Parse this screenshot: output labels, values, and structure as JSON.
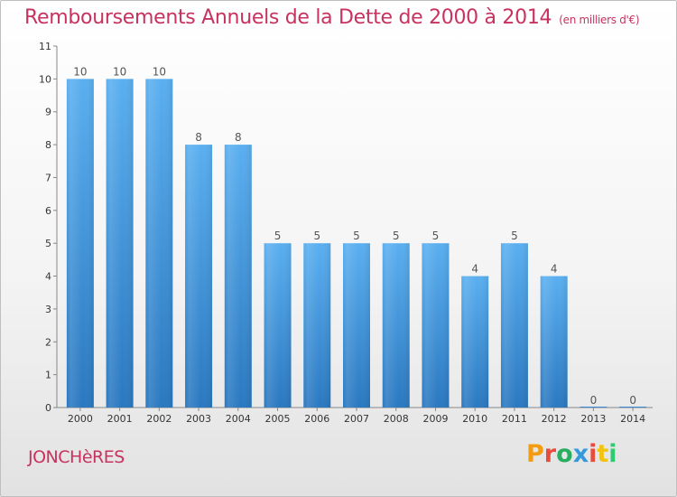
{
  "header": {
    "title": "Remboursements Annuels de la Dette de 2000 à 2014",
    "unit": "(en milliers d'€)"
  },
  "footer": {
    "town": "JONCHèRES",
    "brand": "Proxiti",
    "brand_colors": [
      "#f39c12",
      "#e74c3c",
      "#27ae60",
      "#3498db",
      "#e74c3c",
      "#f1c40f",
      "#2ecc71"
    ]
  },
  "chart_data": {
    "type": "bar",
    "title": "Remboursements Annuels de la Dette de 2000 à 2014",
    "subtitle": "(en milliers d'€)",
    "xlabel": "",
    "ylabel": "",
    "categories": [
      "2000",
      "2001",
      "2002",
      "2003",
      "2004",
      "2005",
      "2006",
      "2007",
      "2008",
      "2009",
      "2010",
      "2011",
      "2012",
      "2013",
      "2014"
    ],
    "values": [
      10,
      10,
      10,
      8,
      8,
      5,
      5,
      5,
      5,
      5,
      4,
      5,
      4,
      0,
      0
    ],
    "data_labels": [
      "10",
      "10",
      "10",
      "8",
      "8",
      "5",
      "5",
      "5",
      "5",
      "5",
      "4",
      "5",
      "4",
      "0",
      "0"
    ],
    "ylim": [
      0,
      11
    ],
    "yticks": [
      "0",
      "1",
      "2",
      "3",
      "4",
      "5",
      "6",
      "7",
      "8",
      "9",
      "10",
      "11"
    ],
    "grid": false,
    "bar_color": "#4a9fe0"
  }
}
